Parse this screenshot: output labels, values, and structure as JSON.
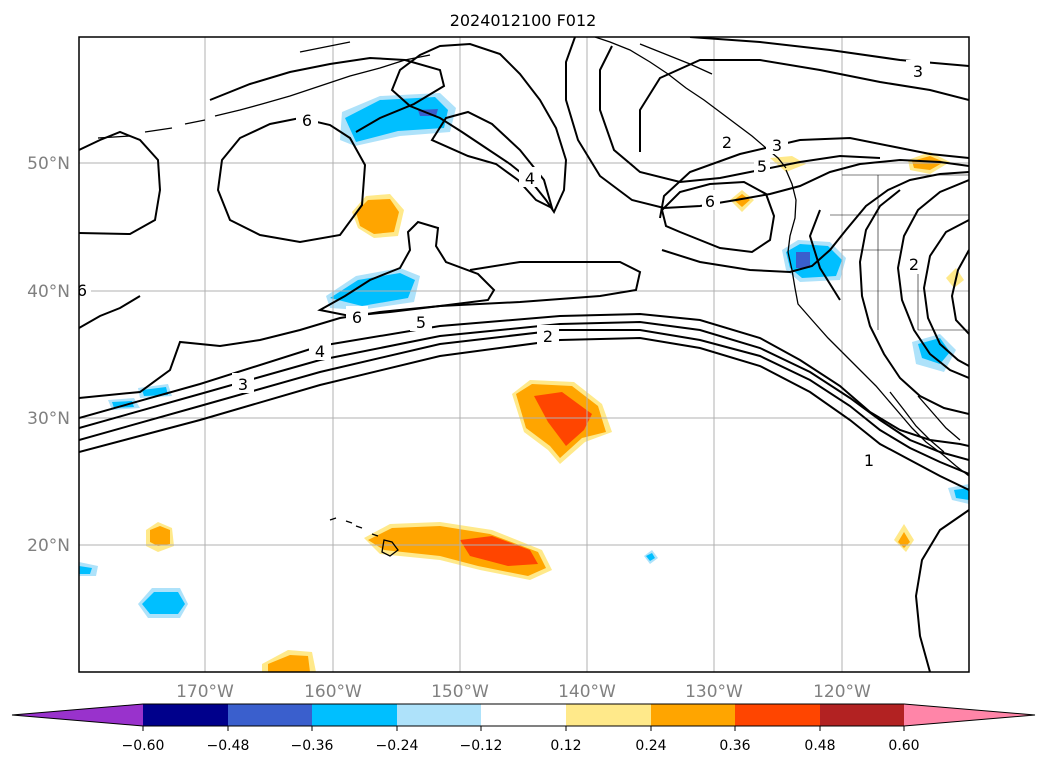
{
  "title": "2024012100 F012",
  "map": {
    "lat_labels": [
      "20°N",
      "30°N",
      "40°N",
      "50°N"
    ],
    "lon_labels": [
      "170°W",
      "160°W",
      "150°W",
      "140°W",
      "130°W",
      "120°W"
    ],
    "contour_labels": [
      "6",
      "6",
      "4",
      "3",
      "2",
      "3",
      "2",
      "3",
      "2",
      "1",
      "5",
      "4",
      "3",
      "6",
      "6",
      "5",
      "6"
    ],
    "grid": true
  },
  "colorbar": {
    "ticks": [
      "−0.60",
      "−0.48",
      "−0.36",
      "−0.24",
      "−0.12",
      "0.12",
      "0.24",
      "0.36",
      "0.48",
      "0.60"
    ],
    "colors": [
      "#9932cc",
      "#00008b",
      "#3a5fcd",
      "#00bfff",
      "#aee2fa",
      "#ffffff",
      "#ffe98a",
      "#ffa500",
      "#ff4500",
      "#b22222",
      "#ff85a8"
    ]
  }
}
